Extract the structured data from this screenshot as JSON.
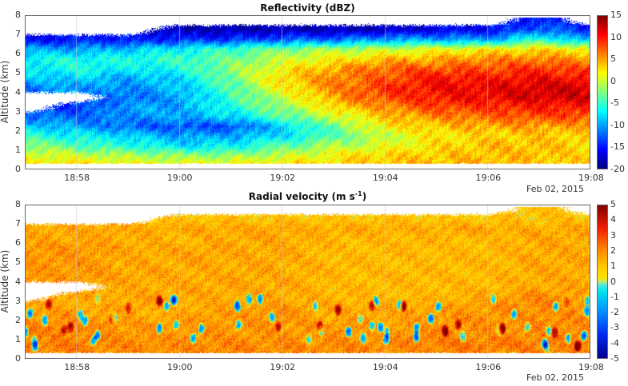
{
  "chart_data": [
    {
      "type": "heatmap",
      "title": "Reflectivity (dBZ)",
      "ylabel": "Altitude (km)",
      "xlabel": "",
      "date_label": "Feb 02, 2015",
      "x_ticks": [
        "18:58",
        "19:00",
        "19:02",
        "19:04",
        "19:06",
        "19:08"
      ],
      "x_range": [
        "18:57",
        "19:08"
      ],
      "y_ticks": [
        0,
        1,
        2,
        3,
        4,
        5,
        6,
        7,
        8
      ],
      "ylim": [
        0,
        8
      ],
      "colorbar": {
        "range": [
          -20,
          15
        ],
        "ticks": [
          15,
          10,
          5,
          0,
          -5,
          -10,
          -15,
          -20
        ],
        "colormap": "jet"
      },
      "grid": true,
      "x_times": [
        "18:57",
        "18:58",
        "18:59",
        "19:00",
        "19:01",
        "19:02",
        "19:03",
        "19:04",
        "19:05",
        "19:06",
        "19:07",
        "19:08"
      ],
      "y_altitudes_km": [
        7.75,
        7.25,
        6.75,
        6.25,
        5.75,
        5.25,
        4.75,
        4.25,
        3.75,
        3.25,
        2.75,
        2.25,
        1.75,
        1.25,
        0.75,
        0.25
      ],
      "values": [
        [
          null,
          null,
          null,
          null,
          null,
          null,
          null,
          null,
          null,
          null,
          -15,
          null
        ],
        [
          null,
          null,
          null,
          -18,
          -18,
          -18,
          -18,
          -18,
          -16,
          -16,
          -12,
          -15
        ],
        [
          -16,
          -15,
          -15,
          -14,
          -14,
          -12,
          -12,
          -10,
          -10,
          -10,
          -5,
          -10
        ],
        [
          -10,
          -10,
          -9,
          -7,
          -5,
          -3,
          -1,
          0,
          1,
          2,
          3,
          2
        ],
        [
          -7,
          -6,
          -6,
          -5,
          -3,
          0,
          2,
          4,
          5,
          6,
          6,
          5
        ],
        [
          -7,
          -6,
          -7,
          -6,
          -2,
          2,
          5,
          7,
          8,
          8,
          9,
          8
        ],
        [
          -9,
          -8,
          -10,
          -8,
          -3,
          3,
          6,
          8,
          10,
          10,
          11,
          10
        ],
        [
          -12,
          -10,
          -11,
          -9,
          -4,
          2,
          6,
          9,
          11,
          11,
          12,
          12
        ],
        [
          null,
          null,
          -12,
          -10,
          -5,
          0,
          5,
          8,
          10,
          11,
          12,
          12
        ],
        [
          null,
          -14,
          -10,
          -10,
          -6,
          -2,
          3,
          6,
          8,
          9,
          10,
          10
        ],
        [
          -12,
          -12,
          -11,
          -10,
          -8,
          -4,
          0,
          4,
          6,
          7,
          8,
          8
        ],
        [
          -8,
          -10,
          -12,
          -13,
          -13,
          -8,
          -3,
          2,
          4,
          5,
          5,
          5
        ],
        [
          -5,
          -7,
          -8,
          -10,
          -10,
          -8,
          -4,
          0,
          2,
          3,
          4,
          3
        ],
        [
          -2,
          -4,
          -6,
          -8,
          -7,
          -4,
          -1,
          1,
          3,
          4,
          4,
          3
        ],
        [
          1,
          0,
          -1,
          -2,
          -2,
          0,
          2,
          3,
          4,
          4,
          4,
          3
        ],
        [
          3,
          3,
          2,
          2,
          2,
          3,
          3,
          4,
          4,
          5,
          4,
          4
        ]
      ]
    },
    {
      "type": "heatmap",
      "title": "Radial velocity (m s",
      "title_sup": "-1",
      "title_end": ")",
      "ylabel": "Altitude (km)",
      "date_label": "Feb 02, 2015",
      "x_ticks": [
        "18:58",
        "19:00",
        "19:02",
        "19:04",
        "19:06",
        "19:08"
      ],
      "x_range": [
        "18:57",
        "19:08"
      ],
      "y_ticks": [
        0,
        1,
        2,
        3,
        4,
        5,
        6,
        7,
        8
      ],
      "ylim": [
        0,
        8
      ],
      "colorbar": {
        "range": [
          -5,
          5
        ],
        "ticks": [
          5,
          4,
          3,
          2,
          1,
          0,
          -1,
          -2,
          -3,
          -4,
          -5
        ],
        "colormap": "diverging blue-cyan / yellow-red"
      },
      "grid": true,
      "x_times": [
        "18:57",
        "18:58",
        "18:59",
        "19:00",
        "19:01",
        "19:02",
        "19:03",
        "19:04",
        "19:05",
        "19:06",
        "19:07",
        "19:08"
      ],
      "y_altitudes_km": [
        7.75,
        7.25,
        6.75,
        6.25,
        5.75,
        5.25,
        4.75,
        4.25,
        3.75,
        3.25,
        2.75,
        2.25,
        1.75,
        1.25,
        0.75,
        0.25
      ],
      "values": [
        [
          null,
          null,
          null,
          null,
          null,
          null,
          null,
          null,
          null,
          null,
          1,
          null
        ],
        [
          null,
          null,
          null,
          1,
          1,
          1,
          1,
          1,
          1,
          1,
          1,
          1
        ],
        [
          1.5,
          1.5,
          1.5,
          1.5,
          1.5,
          1.5,
          1.5,
          1.5,
          1.5,
          1.5,
          1.5,
          1.5
        ],
        [
          1.5,
          1.5,
          1.5,
          1.2,
          1.5,
          1.5,
          1.2,
          1.2,
          1.2,
          1.2,
          1.5,
          1.5
        ],
        [
          1.8,
          1.8,
          1.5,
          1.5,
          1.5,
          1.5,
          1.2,
          1.2,
          1.2,
          1.2,
          1.5,
          1.5
        ],
        [
          1.8,
          1.8,
          1.5,
          1.5,
          1.5,
          1.5,
          1.2,
          1.2,
          1.2,
          1.2,
          1.5,
          1.5
        ],
        [
          1.8,
          1.8,
          1.5,
          1.5,
          1.5,
          1.5,
          1.2,
          1.2,
          1.2,
          1.2,
          1.5,
          1.5
        ],
        [
          1.8,
          1.8,
          1.5,
          1.5,
          1.5,
          1.5,
          1.2,
          1.2,
          1.2,
          1.2,
          1.5,
          1.5
        ],
        [
          null,
          null,
          1.5,
          1.5,
          1.5,
          1.5,
          1.2,
          1.2,
          1.2,
          1.2,
          1.5,
          1.5
        ],
        [
          null,
          1.5,
          1.5,
          1.5,
          1.5,
          1.5,
          1.2,
          1.2,
          1.2,
          1.5,
          2,
          1.5
        ],
        [
          1.5,
          1.5,
          1.5,
          1.5,
          1.5,
          1.8,
          1.5,
          1.5,
          1.5,
          1.8,
          2,
          1.8
        ],
        [
          1.8,
          1.8,
          1.5,
          1.5,
          1.8,
          1.8,
          1.5,
          1.5,
          1.8,
          1.8,
          2,
          1.8
        ],
        [
          2,
          2,
          1.8,
          1.8,
          1.8,
          1.8,
          1.8,
          1.8,
          1.8,
          1.8,
          2,
          2
        ],
        [
          2,
          2,
          1.8,
          1.8,
          1.8,
          1.8,
          1.8,
          1.8,
          2,
          2,
          2,
          2
        ],
        [
          2.2,
          2.2,
          2,
          2,
          2,
          2,
          2,
          2,
          2.2,
          2.2,
          2.2,
          2
        ],
        [
          2,
          2,
          2,
          2,
          2,
          2,
          2,
          2,
          2,
          2,
          2,
          2
        ]
      ]
    }
  ]
}
